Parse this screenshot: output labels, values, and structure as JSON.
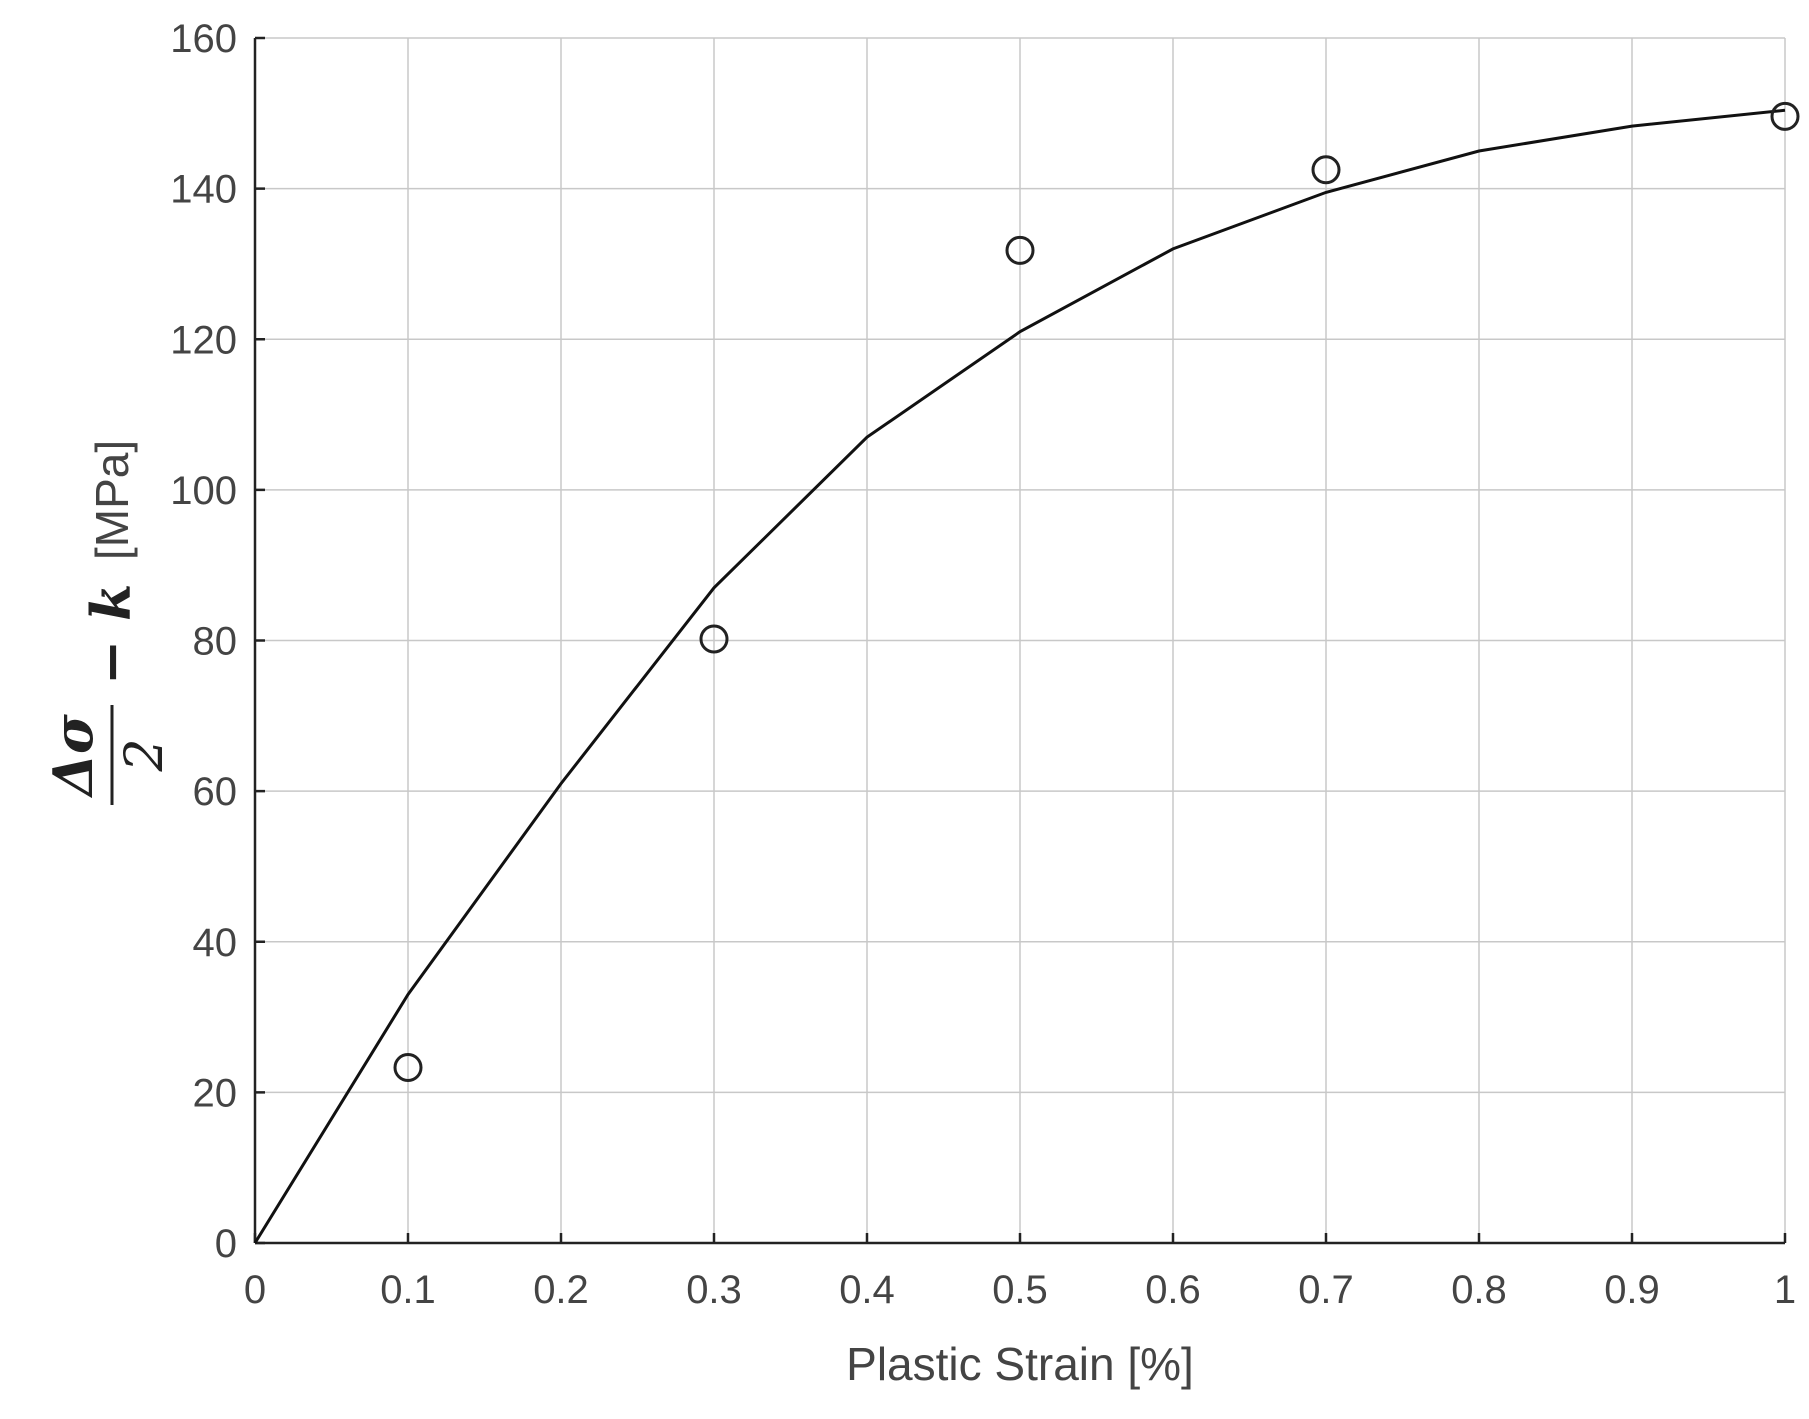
{
  "chart_data": {
    "type": "scatter",
    "xlabel": "Plastic Strain [%]",
    "ylabel": {
      "numerator": "Δσ",
      "denominator": "2",
      "minus_k": "− k",
      "unit": "[MPa]"
    },
    "xlim": [
      0,
      1
    ],
    "ylim": [
      0,
      160
    ],
    "x_ticks": [
      0,
      0.1,
      0.2,
      0.3,
      0.4,
      0.5,
      0.6,
      0.7,
      0.8,
      0.9,
      1
    ],
    "x_tick_labels": [
      "0",
      "0.1",
      "0.2",
      "0.3",
      "0.4",
      "0.5",
      "0.6",
      "0.7",
      "0.8",
      "0.9",
      "1"
    ],
    "y_ticks": [
      0,
      20,
      40,
      60,
      80,
      100,
      120,
      140,
      160
    ],
    "y_tick_labels": [
      "0",
      "20",
      "40",
      "60",
      "80",
      "100",
      "120",
      "140",
      "160"
    ],
    "grid": true,
    "series": [
      {
        "kind": "markers",
        "marker": "open-circle",
        "x": [
          0.1,
          0.3,
          0.5,
          0.7,
          1.0
        ],
        "y": [
          23.3,
          80.2,
          131.8,
          142.5,
          149.6
        ]
      },
      {
        "kind": "line",
        "x": [
          0,
          0.1,
          0.2,
          0.3,
          0.4,
          0.5,
          0.6,
          0.7,
          0.8,
          0.9,
          1.0
        ],
        "y": [
          0,
          33,
          61,
          87,
          107,
          121,
          132,
          139.5,
          145,
          148.3,
          150.4
        ]
      }
    ],
    "colors": {
      "line": "#111111",
      "marker": "#222222",
      "grid": "#c8c8c8",
      "text": "#444444"
    }
  }
}
